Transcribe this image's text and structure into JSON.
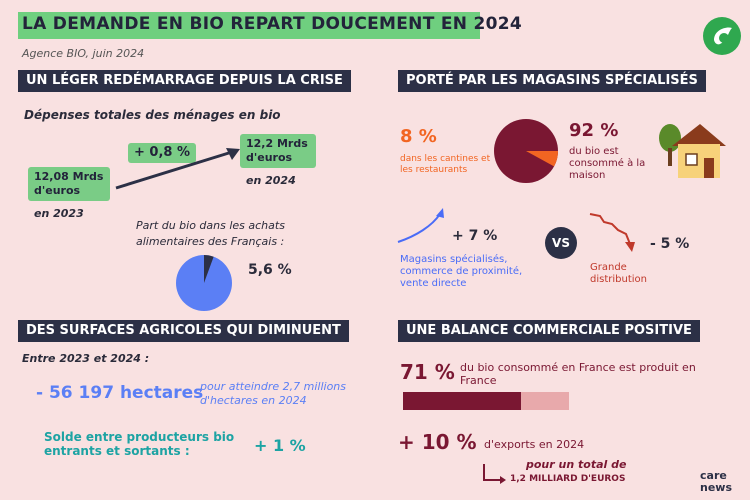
{
  "header": {
    "title": "LA DEMANDE EN BIO REPART DOUCEMENT EN 2024",
    "source": "Agence BIO, juin 2024"
  },
  "sections": {
    "s1": "UN LÉGER REDÉMARRAGE DEPUIS LA CRISE",
    "s2": "PORTÉ PAR LES MAGASINS SPÉCIALISÉS",
    "s3": "DES SURFACES AGRICOLES QUI DIMINUENT",
    "s4": "UNE BALANCE COMMERCIALE POSITIVE"
  },
  "spending": {
    "heading": "Dépenses totales des ménages en bio",
    "value_2023": "12,08 Mrds d'euros",
    "year_2023": "en 2023",
    "growth": "+ 0,8 %",
    "value_2024": "12,2 Mrds d'euros",
    "year_2024": "en 2024",
    "share_label": "Part du bio dans les achats alimentaires des Français :",
    "share_value": "5,6 %",
    "share_fraction": 0.056
  },
  "channels": {
    "canteen_pct": "8 %",
    "canteen_label": "dans les cantines et les restaurants",
    "home_pct": "92 %",
    "home_label": "du bio est consommé à la maison",
    "home_fraction": 0.92,
    "specialized_change": "+ 7 %",
    "specialized_label": "Magasins spécialisés, commerce de proximité, vente directe",
    "vs": "VS",
    "large_change": "- 5 %",
    "large_label": "Grande distribution"
  },
  "land": {
    "period": "Entre 2023 et 2024 :",
    "hectares": "- 56 197 hectares",
    "hectares_note": "pour atteindre 2,7 millions d'hectares en 2024",
    "balance_label": "Solde entre producteurs bio entrants et sortants :",
    "balance_value": "+ 1 %"
  },
  "trade": {
    "domestic_pct": "71 %",
    "domestic_label": "du bio consommé en France est produit en France",
    "domestic_fraction": 0.71,
    "export_pct": "+ 10 %",
    "export_label": "d'exports en 2024",
    "export_total_prefix": "pour un total de",
    "export_total": "1,2 MILLIARD D'EUROS"
  },
  "footer": {
    "brand_line1": "care",
    "brand_line2": "news"
  },
  "colors": {
    "background": "#f9e1e1",
    "title_green": "#6fcf7f",
    "section_navy": "#2c3046",
    "orange": "#f26522",
    "maroon": "#7a1732",
    "blue": "#4a6cf7",
    "teal": "#1da3a3"
  }
}
